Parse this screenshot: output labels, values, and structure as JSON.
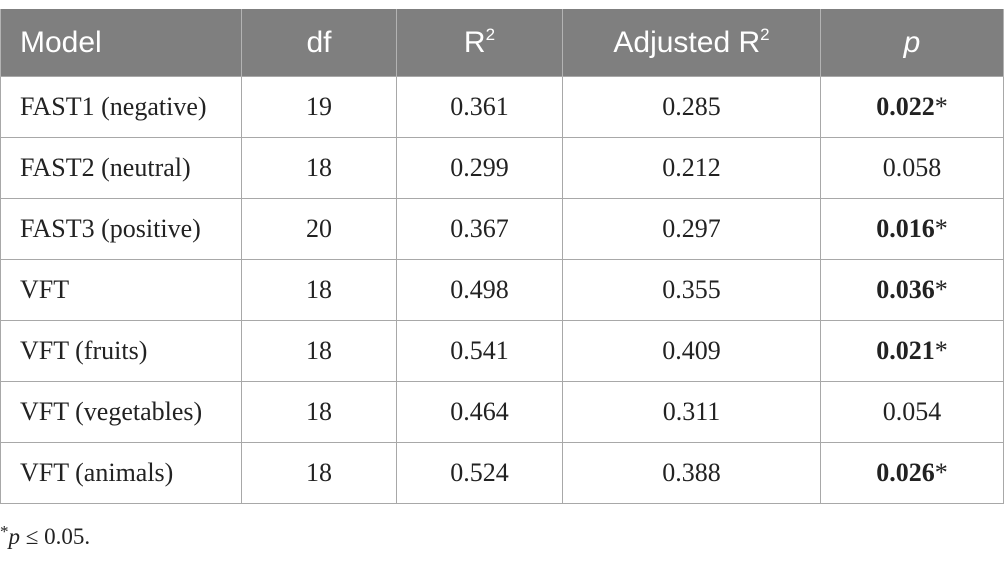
{
  "table": {
    "headers": {
      "model": "Model",
      "df": "df",
      "r2_base": "R",
      "r2_sup": "2",
      "adj_base": "Adjusted R",
      "adj_sup": "2",
      "p": "p"
    },
    "rows": [
      {
        "model": "FAST1 (negative)",
        "df": "19",
        "r2": "0.361",
        "adj_r2": "0.285",
        "p_bold": "0.022",
        "p_mark": "*",
        "p_plain": ""
      },
      {
        "model": "FAST2 (neutral)",
        "df": "18",
        "r2": "0.299",
        "adj_r2": "0.212",
        "p_bold": "",
        "p_mark": "",
        "p_plain": "0.058"
      },
      {
        "model": "FAST3 (positive)",
        "df": "20",
        "r2": "0.367",
        "adj_r2": "0.297",
        "p_bold": "0.016",
        "p_mark": "*",
        "p_plain": ""
      },
      {
        "model": "VFT",
        "df": "18",
        "r2": "0.498",
        "adj_r2": "0.355",
        "p_bold": "0.036",
        "p_mark": "*",
        "p_plain": ""
      },
      {
        "model": "VFT (fruits)",
        "df": "18",
        "r2": "0.541",
        "adj_r2": "0.409",
        "p_bold": "0.021",
        "p_mark": "*",
        "p_plain": ""
      },
      {
        "model": "VFT (vegetables)",
        "df": "18",
        "r2": "0.464",
        "adj_r2": "0.311",
        "p_bold": "",
        "p_mark": "",
        "p_plain": "0.054"
      },
      {
        "model": "VFT (animals)",
        "df": "18",
        "r2": "0.524",
        "adj_r2": "0.388",
        "p_bold": "0.026",
        "p_mark": "*",
        "p_plain": ""
      }
    ]
  },
  "footnote": {
    "asterisk": "*",
    "p_symbol": "p",
    "text": " ≤ 0.05."
  },
  "colors": {
    "header_background": "#7f7f7f",
    "header_text": "#ffffff",
    "grid_line": "#a8a8a8",
    "body_text": "#222222"
  }
}
